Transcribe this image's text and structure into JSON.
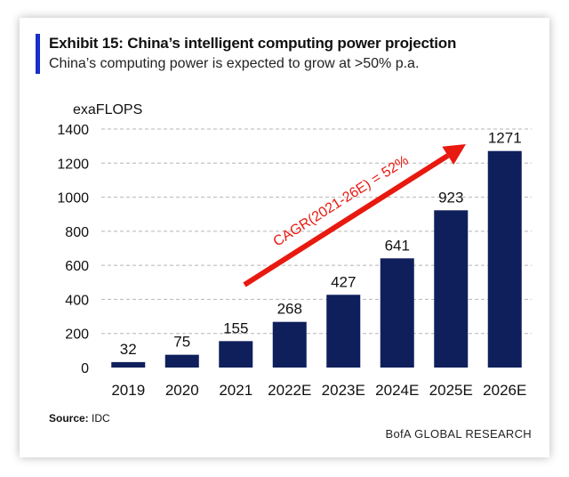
{
  "header": {
    "title": "Exhibit 15: China’s intelligent computing power projection",
    "subtitle": "China’s computing power is expected to grow at >50% p.a."
  },
  "footer": {
    "source_label": "Source:",
    "source_value": "IDC",
    "brand": "BofA GLOBAL RESEARCH"
  },
  "colors": {
    "bar": "#0f1f5c",
    "arrow": "#e8190f",
    "accent": "#1a2ec8",
    "grid": "#b5b5b5"
  },
  "chart_data": {
    "type": "bar",
    "ylabel": "exaFLOPS",
    "ylim": [
      0,
      1400
    ],
    "yticks": [
      0,
      200,
      400,
      600,
      800,
      1000,
      1200,
      1400
    ],
    "grid": true,
    "categories": [
      "2019",
      "2020",
      "2021",
      "2022E",
      "2023E",
      "2024E",
      "2025E",
      "2026E"
    ],
    "values": [
      32,
      75,
      155,
      268,
      427,
      641,
      923,
      1271
    ],
    "data_labels": [
      "32",
      "75",
      "155",
      "268",
      "427",
      "641",
      "923",
      "1271"
    ],
    "annotation": "CAGR(2021-26E) = 52%"
  }
}
